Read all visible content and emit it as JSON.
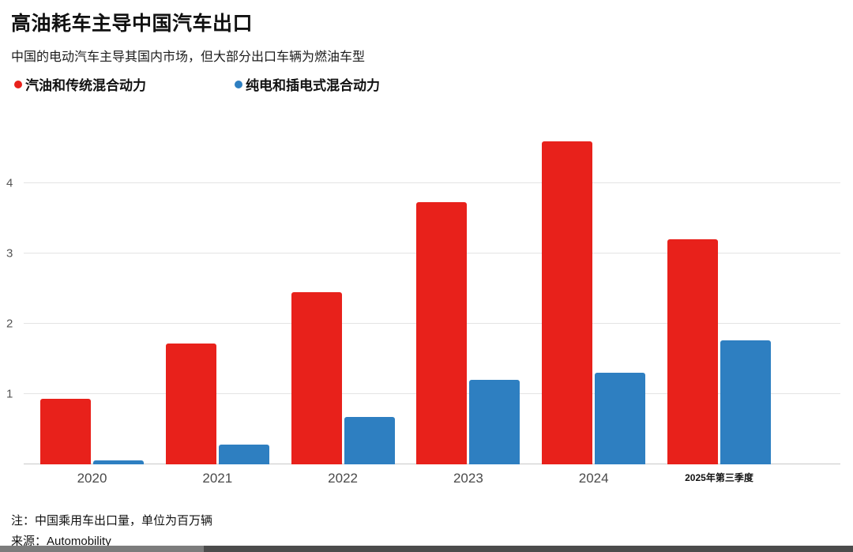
{
  "header": {
    "title": "高油耗车主导中国汽车出口",
    "subtitle": "中国的电动汽车主导其国内市场，但大部分出口车辆为燃油车型"
  },
  "legend": {
    "0": {
      "label": "汽油和传统混合动力",
      "color": "#e8211b"
    },
    "1": {
      "label": "纯电和插电式混合动力",
      "color": "#2e7fc1"
    }
  },
  "footer": {
    "note": "注：中国乘用车出口量，单位为百万辆",
    "source": "来源：Automobility"
  },
  "chart_data": {
    "type": "bar",
    "title": "高油耗车主导中国汽车出口",
    "subtitle": "中国的电动汽车主导其国内市场，但大部分出口车辆为燃油车型",
    "categories": [
      "2020",
      "2021",
      "2022",
      "2023",
      "2024",
      "2025年第三季度"
    ],
    "series": [
      {
        "name": "汽油和传统混合动力",
        "color": "#e8211b",
        "values": [
          0.93,
          1.72,
          2.45,
          3.73,
          4.6,
          3.2
        ]
      },
      {
        "name": "纯电和插电式混合动力",
        "color": "#2e7fc1",
        "values": [
          0.06,
          0.28,
          0.67,
          1.2,
          1.3,
          1.77
        ]
      }
    ],
    "xlabel": "",
    "ylabel": "百万辆",
    "ylim": [
      0,
      4.9
    ],
    "yticks": [
      1,
      2,
      3,
      4
    ],
    "grid": "horizontal",
    "legend_position": "top-left",
    "note": "注：中国乘用车出口量，单位为百万辆",
    "source": "来源：Automobility"
  }
}
